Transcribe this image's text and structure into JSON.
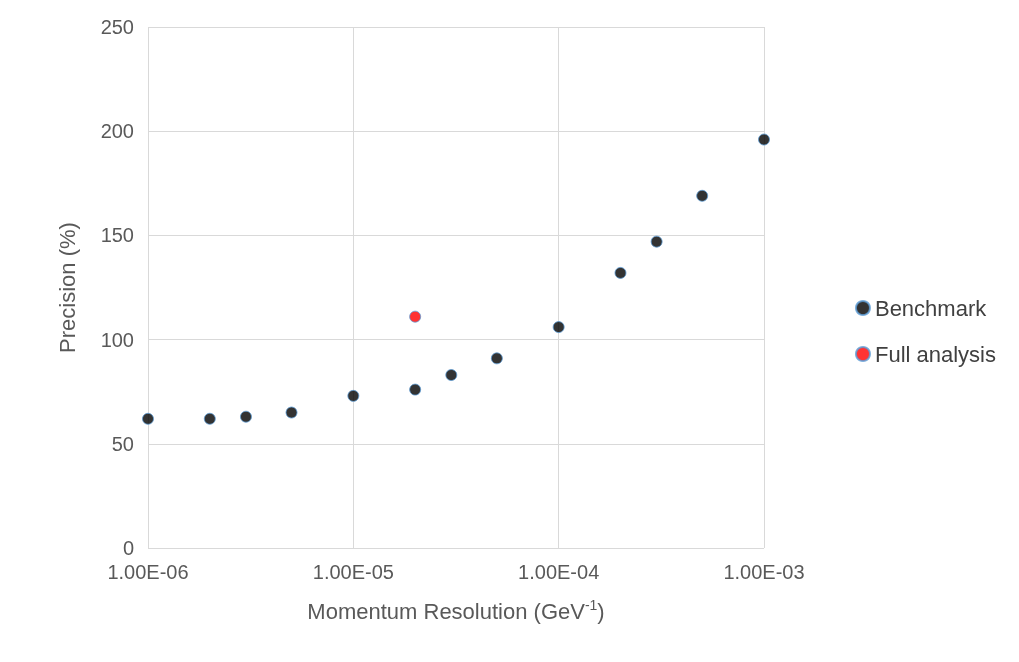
{
  "chart_data": {
    "type": "scatter",
    "xlabel": "Momentum Resolution (GeV$^{-1}$)",
    "ylabel": "Precision (%)",
    "log": "x",
    "xlim": [
      1e-06,
      0.001
    ],
    "xticks": [
      {
        "value": 1e-06,
        "label": "1.00E-06"
      },
      {
        "value": 1e-05,
        "label": "1.00E-05"
      },
      {
        "value": 0.0001,
        "label": "1.00E-04"
      },
      {
        "value": 0.001,
        "label": "1.00E-03"
      }
    ],
    "ylim": [
      0,
      250
    ],
    "yticks": [
      0,
      50,
      100,
      150,
      200,
      250
    ],
    "grid": true,
    "legend": "right",
    "marker": "circle",
    "series": [
      {
        "name": "Benchmark",
        "color": "#000000",
        "x": [
          1e-06,
          2e-06,
          3e-06,
          5e-06,
          1e-05,
          2e-05,
          3e-05,
          5e-05,
          0.0001,
          0.0002,
          0.0003,
          0.0005,
          0.001
        ],
        "values": [
          62,
          62,
          63,
          65,
          73,
          76,
          83,
          91,
          106,
          132,
          147,
          169,
          196
        ]
      },
      {
        "name": "Full analysis",
        "color": "#ff0000",
        "x": [
          2e-05
        ],
        "values": [
          111
        ]
      }
    ]
  }
}
